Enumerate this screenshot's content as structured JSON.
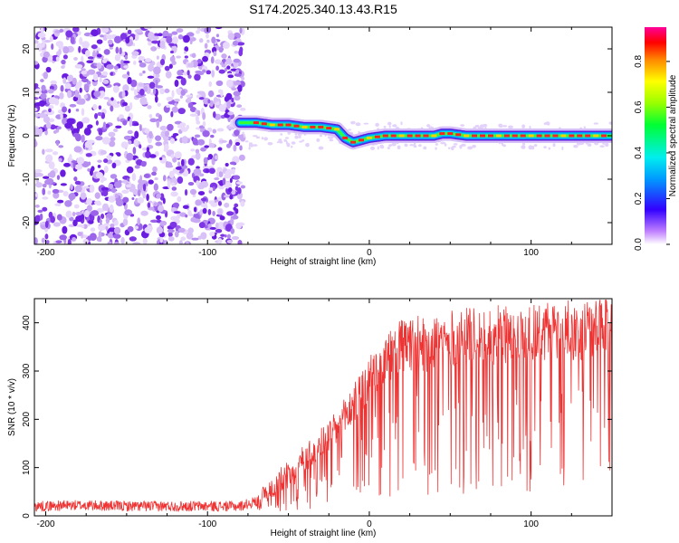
{
  "title": "S174.2025.340.13.43.R15",
  "chart_data": [
    {
      "type": "heatmap",
      "xlabel": "Height of straight line (km)",
      "ylabel": "Frequency (Hz)",
      "xlim": [
        -207,
        150
      ],
      "ylim": [
        -25,
        25
      ],
      "x_ticks": [
        -200,
        -100,
        0,
        100
      ],
      "y_ticks": [
        -20,
        -10,
        0,
        10,
        20
      ],
      "noise_region_x": [
        -207,
        -78
      ],
      "signal_track": {
        "x": [
          -80,
          -70,
          -60,
          -50,
          -40,
          -30,
          -20,
          -15,
          -10,
          0,
          10,
          20,
          30,
          40,
          45,
          50,
          60,
          70,
          80,
          100,
          120,
          150
        ],
        "frequency": [
          3.0,
          3.0,
          2.5,
          2.5,
          2.0,
          2.0,
          1.5,
          -0.5,
          -1.5,
          -0.5,
          0.0,
          0.0,
          0.0,
          0.0,
          0.5,
          0.5,
          0.0,
          0.0,
          0.0,
          0.0,
          0.0,
          0.0
        ]
      },
      "colorbar": {
        "label": "Normalized spectral amplitude",
        "range": [
          0.0,
          0.95
        ],
        "ticks": [
          0.0,
          0.2,
          0.4,
          0.6,
          0.8
        ]
      }
    },
    {
      "type": "line",
      "xlabel": "Height of straight line (km)",
      "ylabel": "SNR (10 * v/v)",
      "xlim": [
        -207,
        150
      ],
      "ylim": [
        0,
        450
      ],
      "x_ticks": [
        -200,
        -100,
        0,
        100
      ],
      "y_ticks": [
        0,
        100,
        200,
        300,
        400
      ],
      "series": [
        {
          "name": "SNR",
          "color": "#ee3333",
          "x": [
            -207,
            -180,
            -150,
            -120,
            -100,
            -80,
            -70,
            -60,
            -50,
            -40,
            -30,
            -20,
            -10,
            0,
            10,
            20,
            30,
            40,
            50,
            60,
            80,
            100,
            120,
            140,
            150
          ],
          "y": [
            20,
            22,
            20,
            20,
            20,
            20,
            30,
            60,
            90,
            120,
            150,
            180,
            230,
            280,
            320,
            350,
            355,
            360,
            365,
            370,
            375,
            380,
            385,
            385,
            390
          ]
        }
      ]
    }
  ]
}
